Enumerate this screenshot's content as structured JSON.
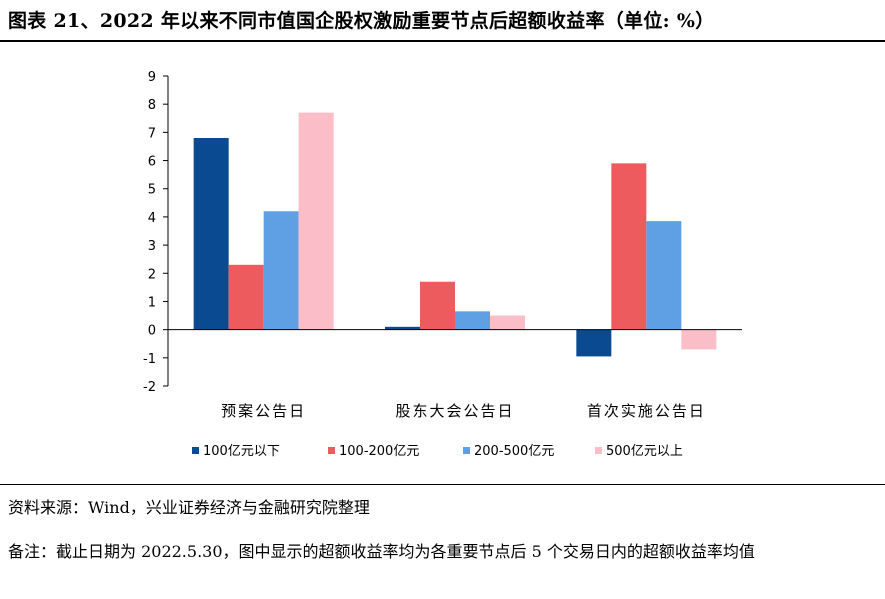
{
  "title": "图表 21、2022 年以来不同市值国企股权激励重要节点后超额收益率（单位: %）",
  "source": "资料来源：Wind，兴业证券经济与金融研究院整理",
  "remark": "备注：截止日期为 2022.5.30，图中显示的超额收益率均为各重要节点后 5 个交易日内的超额收益率均值",
  "chart_data": {
    "type": "bar",
    "categories": [
      "预案公告日",
      "股东大会公告日",
      "首次实施公告日"
    ],
    "series": [
      {
        "name": "100亿元以下",
        "color": "#0a4a91",
        "values": [
          6.8,
          0.1,
          -0.95
        ]
      },
      {
        "name": "100-200亿元",
        "color": "#ee5b5f",
        "values": [
          2.3,
          1.7,
          5.9
        ]
      },
      {
        "name": "200-500亿元",
        "color": "#5f9fe3",
        "values": [
          4.2,
          0.65,
          3.85
        ]
      },
      {
        "name": "500亿元以上",
        "color": "#fbbdc8",
        "values": [
          7.7,
          0.5,
          -0.7
        ]
      }
    ],
    "ylim": [
      -2,
      9
    ],
    "yticks": [
      -2,
      -1,
      0,
      1,
      2,
      3,
      4,
      5,
      6,
      7,
      8,
      9
    ],
    "grid": false,
    "legend_position": "bottom"
  }
}
